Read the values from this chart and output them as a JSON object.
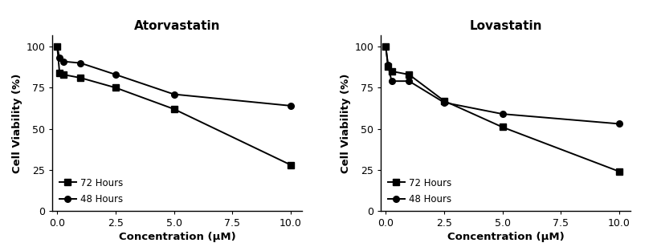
{
  "atorvastatin": {
    "title": "Atorvastatin",
    "x": [
      0.0,
      0.1,
      0.25,
      1.0,
      2.5,
      5.0,
      10.0
    ],
    "72h": [
      100,
      84,
      83,
      81,
      75,
      62,
      28
    ],
    "48h": [
      100,
      93,
      91,
      90,
      83,
      71,
      64
    ]
  },
  "lovastatin": {
    "title": "Lovastatin",
    "x": [
      0.0,
      0.1,
      0.25,
      1.0,
      2.5,
      5.0,
      10.0
    ],
    "72h": [
      100,
      88,
      85,
      83,
      67,
      51,
      24
    ],
    "48h": [
      100,
      89,
      79,
      79,
      66,
      59,
      53
    ]
  },
  "xlabel": "Concentration (μM)",
  "ylabel": "Cell Viability (%)",
  "legend_72h": "72 Hours",
  "legend_48h": "48 Hours",
  "xlim": [
    -0.2,
    10.5
  ],
  "ylim": [
    0,
    107
  ],
  "xticks": [
    0.0,
    2.5,
    5.0,
    7.5,
    10.0
  ],
  "yticks": [
    0,
    25,
    50,
    75,
    100
  ],
  "color_72h": "#000000",
  "color_48h": "#000000",
  "marker_72h": "s",
  "marker_48h": "o",
  "markersize": 5.5,
  "linewidth": 1.4,
  "title_fontsize": 11,
  "label_fontsize": 9.5,
  "tick_fontsize": 9,
  "legend_fontsize": 8.5
}
